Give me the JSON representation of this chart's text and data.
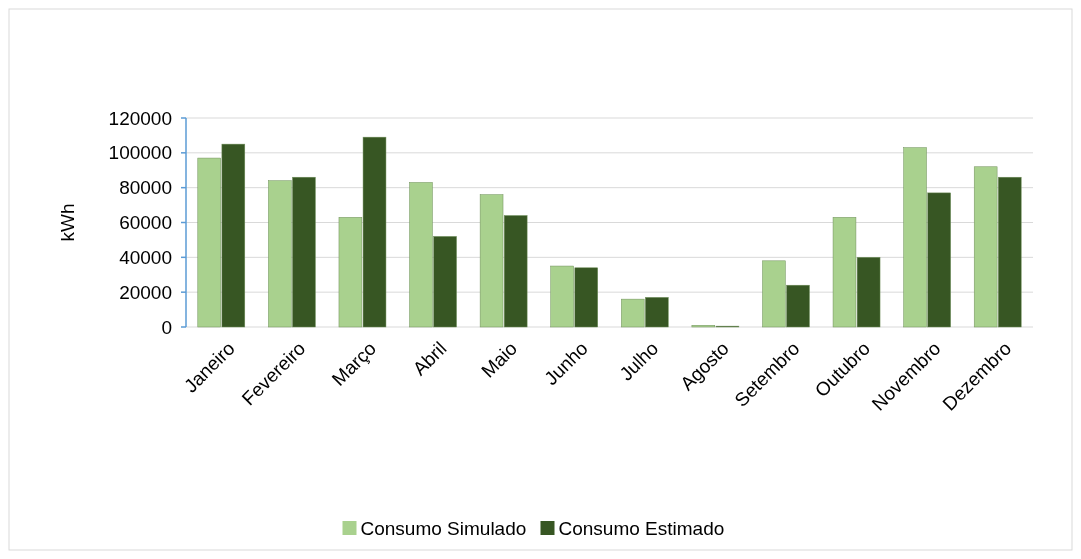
{
  "chart_data": {
    "type": "bar",
    "ylabel": "kWh",
    "categories": [
      "Janeiro",
      "Fevereiro",
      "Março",
      "Abril",
      "Maio",
      "Junho",
      "Julho",
      "Agosto",
      "Setembro",
      "Outubro",
      "Novembro",
      "Dezembro"
    ],
    "series": [
      {
        "name": "Consumo Simulado",
        "color": "#a9d18e",
        "values": [
          97000,
          84000,
          63000,
          83000,
          76000,
          35000,
          16000,
          1000,
          38000,
          63000,
          103000,
          92000
        ]
      },
      {
        "name": "Consumo Estimado",
        "color": "#375623",
        "values": [
          105000,
          86000,
          109000,
          52000,
          64000,
          34000,
          17000,
          500,
          24000,
          40000,
          77000,
          86000
        ]
      }
    ],
    "ylim": [
      0,
      120000
    ],
    "yticks": [
      0,
      20000,
      40000,
      60000,
      80000,
      100000,
      120000
    ],
    "grid": "y",
    "legend": "bottom"
  }
}
